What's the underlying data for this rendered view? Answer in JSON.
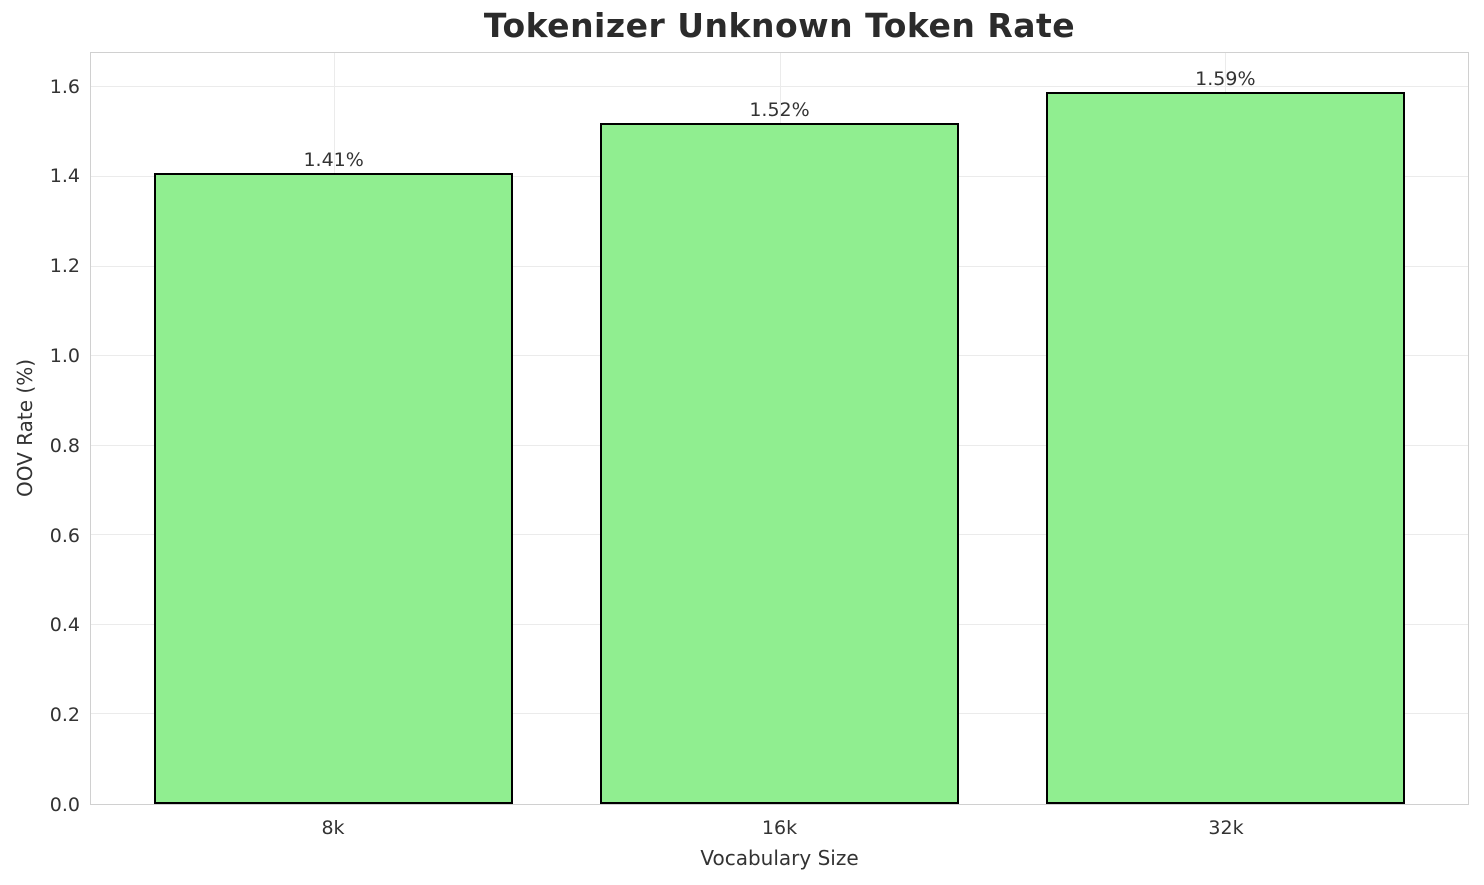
{
  "chart_data": {
    "type": "bar",
    "title": "Tokenizer Unknown Token Rate",
    "xlabel": "Vocabulary Size",
    "ylabel": "OOV Rate (%)",
    "categories": [
      "8k",
      "16k",
      "32k"
    ],
    "values": [
      1.41,
      1.52,
      1.59
    ],
    "bar_labels": [
      "1.41%",
      "1.52%",
      "1.59%"
    ],
    "yticks": [
      0.0,
      0.2,
      0.4,
      0.6,
      0.8,
      1.0,
      1.2,
      1.4,
      1.6
    ],
    "ytick_labels": [
      "0.0",
      "0.2",
      "0.4",
      "0.6",
      "0.8",
      "1.0",
      "1.2",
      "1.4",
      "1.6"
    ],
    "ylim": [
      0,
      1.677
    ],
    "grid": true,
    "legend": false,
    "colors": {
      "bar_fill": "#90EE90",
      "bar_edge": "#000000",
      "grid": "#ebebeb",
      "spine": "#d0d0d0",
      "tick_text": "#333333",
      "title_text": "#2b2b2b"
    }
  }
}
